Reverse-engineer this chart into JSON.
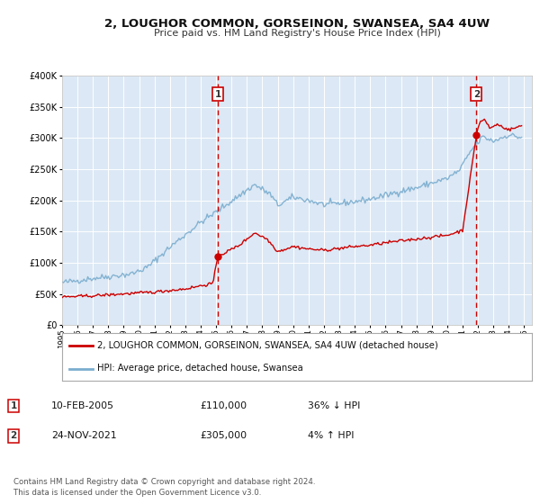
{
  "title": "2, LOUGHOR COMMON, GORSEINON, SWANSEA, SA4 4UW",
  "subtitle": "Price paid vs. HM Land Registry's House Price Index (HPI)",
  "red_label": "2, LOUGHOR COMMON, GORSEINON, SWANSEA, SA4 4UW (detached house)",
  "blue_label": "HPI: Average price, detached house, Swansea",
  "transaction1_date": "10-FEB-2005",
  "transaction1_price": "£110,000",
  "transaction1_hpi": "36% ↓ HPI",
  "transaction2_date": "24-NOV-2021",
  "transaction2_price": "£305,000",
  "transaction2_hpi": "4% ↑ HPI",
  "footer": "Contains HM Land Registry data © Crown copyright and database right 2024.\nThis data is licensed under the Open Government Licence v3.0.",
  "red_color": "#cc0000",
  "blue_color": "#7aadcf",
  "background_color": "#ffffff",
  "plot_bg_color": "#dce8f5",
  "grid_color": "#ffffff",
  "vline_color": "#cc0000",
  "marker1_date_num": 2005.11,
  "marker1_value": 110000,
  "marker2_date_num": 2021.9,
  "marker2_value": 305000,
  "ylim": [
    0,
    400000
  ],
  "xlim_start": 1995.0,
  "xlim_end": 2025.5,
  "ytick_labels": [
    "£0",
    "£50K",
    "£100K",
    "£150K",
    "£200K",
    "£250K",
    "£300K",
    "£350K",
    "£400K"
  ],
  "ytick_values": [
    0,
    50000,
    100000,
    150000,
    200000,
    250000,
    300000,
    350000,
    400000
  ]
}
